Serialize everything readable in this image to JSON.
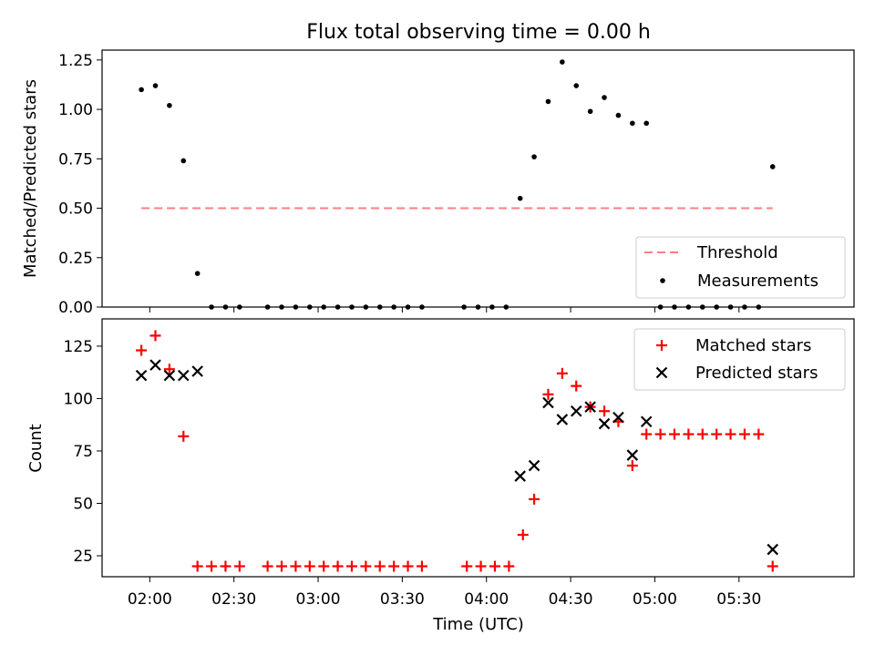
{
  "title": "Flux total observing time = 0.00 h",
  "chart_data": [
    {
      "type": "scatter",
      "ylabel": "Matched/Predicted stars",
      "ylim": [
        0,
        1.3
      ],
      "yticks": [
        0.0,
        0.25,
        0.5,
        0.75,
        1.0,
        1.25
      ],
      "ytick_labels": [
        "0.00",
        "0.25",
        "0.50",
        "0.75",
        "1.00",
        "1.25"
      ],
      "grid": false,
      "legend_position": "lower-right",
      "threshold": {
        "name": "Threshold",
        "value": 0.5,
        "x_range": [
          "01:57",
          "05:42"
        ],
        "color": "#ff7f7f"
      },
      "series": [
        {
          "name": "Measurements",
          "color": "#000000",
          "marker": "dot",
          "x": [
            "01:57",
            "02:02",
            "02:07",
            "02:12",
            "02:17",
            "02:22",
            "02:27",
            "02:32",
            "02:37",
            "02:42",
            "02:47",
            "02:52",
            "02:57",
            "03:02",
            "03:07",
            "03:12",
            "03:17",
            "03:22",
            "03:27",
            "03:32",
            "03:37",
            "03:42",
            "03:47",
            "03:52",
            "03:57",
            "04:02",
            "04:07",
            "04:12",
            "04:17",
            "04:22",
            "04:27",
            "04:32",
            "04:37",
            "04:42",
            "04:47",
            "04:52",
            "04:57",
            "05:02",
            "05:07",
            "05:12",
            "05:17",
            "05:22",
            "05:27",
            "05:32",
            "05:37",
            "05:42"
          ],
          "y": [
            1.1,
            1.12,
            1.02,
            0.74,
            0.17,
            0.0,
            0.0,
            0.0,
            null,
            0.0,
            0.0,
            0.0,
            0.0,
            0.0,
            0.0,
            0.0,
            0.0,
            0.0,
            0.0,
            0.0,
            0.0,
            null,
            null,
            0.0,
            0.0,
            0.0,
            0.0,
            0.55,
            0.76,
            1.04,
            1.24,
            1.12,
            0.99,
            1.06,
            0.97,
            0.93,
            0.93,
            0.0,
            0.0,
            0.0,
            0.0,
            0.0,
            0.0,
            0.0,
            0.0,
            0.71
          ]
        }
      ]
    },
    {
      "type": "scatter",
      "xlabel": "Time (UTC)",
      "ylabel": "Count",
      "ylim": [
        15,
        138
      ],
      "yticks": [
        25,
        50,
        75,
        100,
        125
      ],
      "ytick_labels": [
        "25",
        "50",
        "75",
        "100",
        "125"
      ],
      "xlim": [
        "01:43",
        "06:11"
      ],
      "xticks": [
        "02:00",
        "02:30",
        "03:00",
        "03:30",
        "04:00",
        "04:30",
        "05:00",
        "05:30"
      ],
      "grid": false,
      "legend_position": "upper-right",
      "series": [
        {
          "name": "Matched stars",
          "color": "#ff0000",
          "marker": "plus",
          "x": [
            "01:57",
            "02:02",
            "02:07",
            "02:12",
            "02:17",
            "02:22",
            "02:27",
            "02:32",
            "02:42",
            "02:47",
            "02:52",
            "02:57",
            "03:02",
            "03:07",
            "03:12",
            "03:17",
            "03:22",
            "03:27",
            "03:32",
            "03:37",
            "03:53",
            "03:58",
            "04:03",
            "04:08",
            "04:13",
            "04:17",
            "04:22",
            "04:27",
            "04:32",
            "04:37",
            "04:42",
            "04:47",
            "04:52",
            "04:57",
            "05:02",
            "05:07",
            "05:12",
            "05:17",
            "05:22",
            "05:27",
            "05:32",
            "05:37",
            "05:42"
          ],
          "y": [
            123,
            130,
            114,
            82,
            20,
            20,
            20,
            20,
            20,
            20,
            20,
            20,
            20,
            20,
            20,
            20,
            20,
            20,
            20,
            20,
            20,
            20,
            20,
            20,
            35,
            52,
            102,
            112,
            106,
            96,
            94,
            89,
            68,
            83,
            83,
            83,
            83,
            83,
            83,
            83,
            83,
            83,
            20
          ]
        },
        {
          "name": "Predicted stars",
          "color": "#000000",
          "marker": "x",
          "x": [
            "01:57",
            "02:02",
            "02:07",
            "02:12",
            "02:17",
            "04:12",
            "04:17",
            "04:22",
            "04:27",
            "04:32",
            "04:37",
            "04:42",
            "04:47",
            "04:52",
            "04:57",
            "05:42"
          ],
          "y": [
            111,
            116,
            111,
            111,
            113,
            63,
            68,
            98,
            90,
            94,
            96,
            88,
            91,
            73,
            89,
            28
          ]
        }
      ]
    }
  ]
}
